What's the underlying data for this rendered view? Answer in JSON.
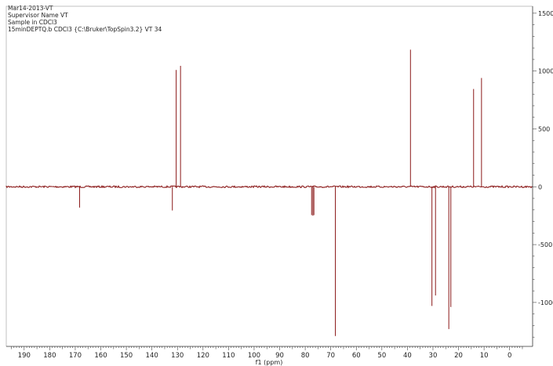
{
  "header": {
    "lines": [
      "Mar14-2013-VT",
      "Supervisor Name VT",
      "Sample in CDCl3",
      "15minDEPTQ.b CDCl3 {C:\\Bruker\\TopSpin3.2} VT 34"
    ]
  },
  "colors": {
    "spectrum": "#8b1a1a",
    "axis": "#444444",
    "frame": "#999999"
  },
  "chart_data": {
    "type": "line",
    "title": "",
    "xlabel": "f1 (ppm)",
    "ylabel": "",
    "x_reversed": true,
    "xlim": [
      197,
      -9
    ],
    "ylim": [
      -1380,
      1560
    ],
    "x_ticks": [
      190,
      180,
      170,
      160,
      150,
      140,
      130,
      120,
      110,
      100,
      90,
      80,
      70,
      60,
      50,
      40,
      30,
      20,
      10,
      0
    ],
    "y_ticks": [
      1500,
      1000,
      500,
      0,
      -500,
      -1000
    ],
    "y_axis_side": "right",
    "grid": false,
    "peaks": [
      {
        "ppm": 168.3,
        "intensity": -180
      },
      {
        "ppm": 132.0,
        "intensity": -205
      },
      {
        "ppm": 130.5,
        "intensity": 1010
      },
      {
        "ppm": 128.8,
        "intensity": 1045
      },
      {
        "ppm": 77.5,
        "intensity": -245
      },
      {
        "ppm": 77.0,
        "intensity": -250
      },
      {
        "ppm": 76.6,
        "intensity": -245
      },
      {
        "ppm": 68.2,
        "intensity": -1290
      },
      {
        "ppm": 38.8,
        "intensity": 1185
      },
      {
        "ppm": 30.4,
        "intensity": -1030
      },
      {
        "ppm": 29.0,
        "intensity": -940
      },
      {
        "ppm": 23.8,
        "intensity": -1230
      },
      {
        "ppm": 23.0,
        "intensity": -1040
      },
      {
        "ppm": 14.1,
        "intensity": 845
      },
      {
        "ppm": 11.0,
        "intensity": 940
      }
    ]
  }
}
